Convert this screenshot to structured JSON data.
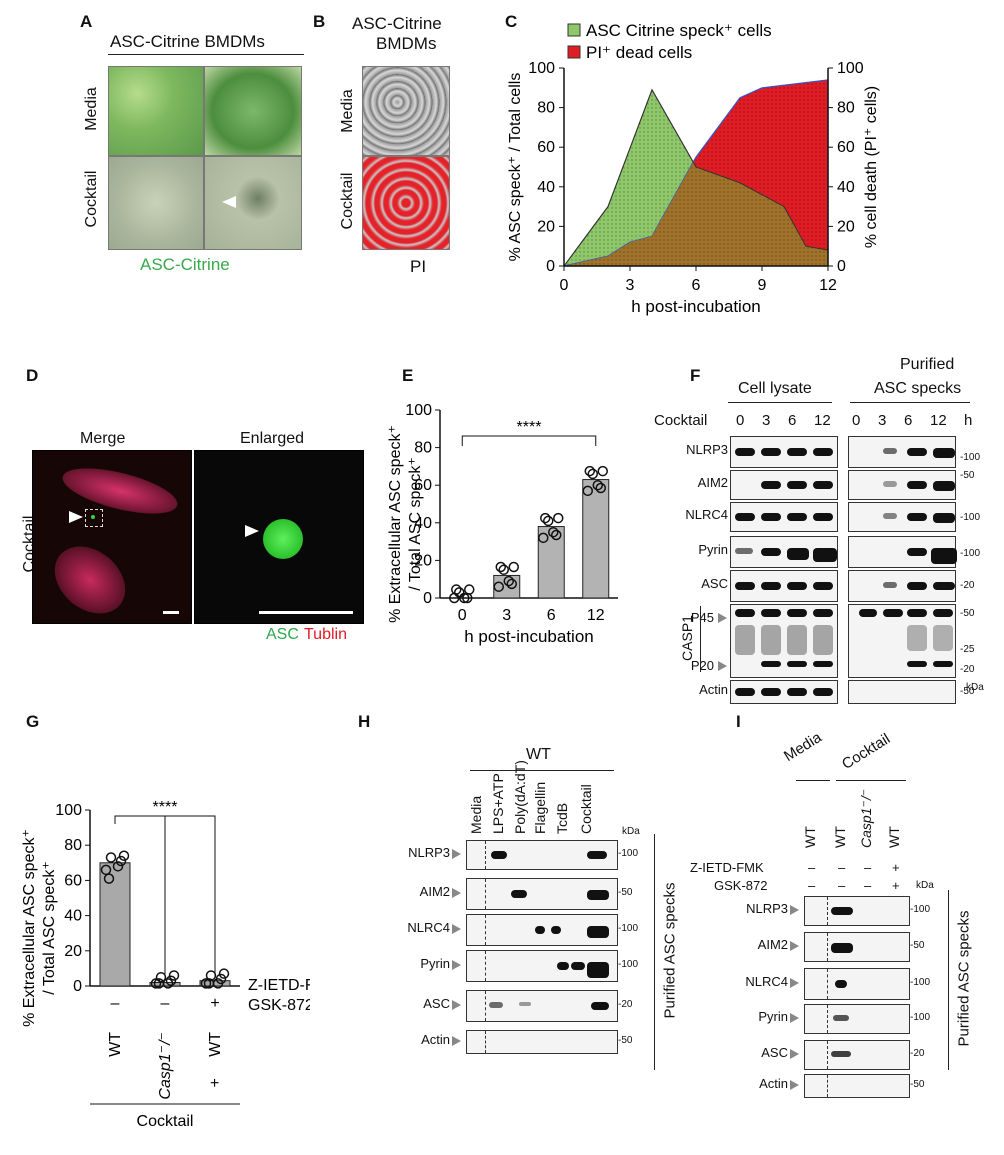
{
  "panel_labels": {
    "a": "A",
    "b": "B",
    "c": "C",
    "d": "D",
    "e": "E",
    "f": "F",
    "g": "G",
    "h": "H",
    "i": "I"
  },
  "panel_a": {
    "title": "ASC-Citrine BMDMs",
    "row1": "Media",
    "row2": "Cocktail",
    "channel": "ASC-Citrine"
  },
  "panel_b": {
    "title_line1": "ASC-Citrine",
    "title_line2": "BMDMs",
    "row1": "Media",
    "row2": "Cocktail",
    "channel": "PI"
  },
  "panel_c": {
    "legend1": "ASC Citrine speck⁺ cells",
    "legend2": "PI⁺ dead cells",
    "ylabel_left": "% ASC speck⁺ / Total cells",
    "ylabel_right": "% cell death (PI⁺ cells)",
    "xlabel": "h post-incubation",
    "xticks": [
      "0",
      "3",
      "6",
      "9",
      "12"
    ],
    "yticks": [
      "0",
      "20",
      "40",
      "60",
      "80",
      "100"
    ],
    "colors": {
      "speck": "#8ec86a",
      "pi": "#e01c24",
      "overlap": "#a0722a"
    }
  },
  "panel_d": {
    "col1": "Merge",
    "col2": "Enlarged",
    "row": "Cocktail",
    "asc": "ASC",
    "tublin": "Tublin"
  },
  "panel_e": {
    "ylabel1": "% Extracellular ASC speck⁺",
    "ylabel2": "/ Total ASC speck⁺",
    "xlabel": "h post-incubation",
    "sig": "****",
    "yticks": [
      "0",
      "20",
      "40",
      "60",
      "80",
      "100"
    ],
    "xticks": [
      "0",
      "3",
      "6",
      "12"
    ]
  },
  "panel_f": {
    "header_left": "Cell lysate",
    "header_right_1": "Purified",
    "header_right_2": "ASC specks",
    "cocktail": "Cocktail",
    "lanes": [
      "0",
      "3",
      "6",
      "12"
    ],
    "h": "h",
    "rows": [
      "NLRP3",
      "AIM2",
      "NLRC4",
      "Pyrin",
      "ASC",
      "P45",
      "P20",
      "Actin"
    ],
    "casp1": "CASP1",
    "kda_marks": [
      "100",
      "50",
      "100",
      "100",
      "20",
      "50",
      "25",
      "20",
      "50"
    ],
    "kda": "kDa"
  },
  "panel_g": {
    "ylabel1": "% Extracellular ASC speck⁺",
    "ylabel2": "/ Total ASC speck⁺",
    "sig": "****",
    "yticks": [
      "0",
      "20",
      "40",
      "60",
      "80",
      "100"
    ],
    "xcats": [
      "WT",
      "Casp1⁻/⁻",
      "WT"
    ],
    "zietd": "Z-IETD-FMK",
    "gsk": "GSK-872",
    "sym": [
      "–",
      "–",
      "+"
    ],
    "cocktail": "Cocktail"
  },
  "panel_h": {
    "wt": "WT",
    "lanes": [
      "Media",
      "LPS+ATP",
      "Poly(dA:dT)",
      "Flagellin",
      "TcdB",
      "Cocktail"
    ],
    "rows": [
      "NLRP3",
      "AIM2",
      "NLRC4",
      "Pyrin",
      "ASC",
      "Actin"
    ],
    "kda": "kDa",
    "kda_marks": [
      "100",
      "50",
      "100",
      "100",
      "20",
      "50"
    ],
    "side": "Purified ASC specks"
  },
  "panel_i": {
    "media": "Media",
    "cocktail": "Cocktail",
    "lanes": [
      "WT",
      "WT",
      "Casp1⁻/⁻",
      "WT"
    ],
    "zietd": "Z-IETD-FMK",
    "gsk": "GSK-872",
    "z_syms": [
      "–",
      "–",
      "–",
      "+"
    ],
    "g_syms": [
      "–",
      "–",
      "–",
      "+"
    ],
    "kda": "kDa",
    "rows": [
      "NLRP3",
      "AIM2",
      "NLRC4",
      "Pyrin",
      "ASC",
      "Actin"
    ],
    "kda_marks": [
      "100",
      "50",
      "100",
      "100",
      "20",
      "50"
    ],
    "side": "Purified ASC specks"
  },
  "chart_data": [
    {
      "type": "area",
      "title": "",
      "xlabel": "h post-incubation",
      "ylabel": "% ASC speck⁺ / Total cells",
      "ylabel_right": "% cell death (PI⁺ cells)",
      "xlim": [
        0,
        12
      ],
      "ylim": [
        0,
        100
      ],
      "series": [
        {
          "name": "ASC Citrine speck⁺ cells",
          "x": [
            0,
            2,
            4,
            6,
            8,
            10,
            11,
            12
          ],
          "values": [
            0,
            30,
            89,
            50,
            42,
            30,
            10,
            8
          ]
        },
        {
          "name": "PI⁺ dead cells",
          "x": [
            0,
            2,
            3,
            4,
            6,
            8,
            9,
            12
          ],
          "values": [
            0,
            5,
            12,
            15,
            55,
            85,
            90,
            94
          ]
        }
      ]
    },
    {
      "type": "bar",
      "xlabel": "h post-incubation",
      "ylabel": "% Extracellular ASC speck⁺ / Total ASC speck⁺",
      "categories": [
        "0",
        "3",
        "6",
        "12"
      ],
      "values": [
        0,
        12,
        38,
        63
      ],
      "ylim": [
        0,
        100
      ]
    },
    {
      "type": "bar",
      "ylabel": "% Extracellular ASC speck⁺ / Total ASC speck⁺",
      "categories": [
        "WT",
        "Casp1⁻/⁻",
        "WT +"
      ],
      "values": [
        70,
        2,
        3
      ],
      "ylim": [
        0,
        100
      ]
    }
  ]
}
